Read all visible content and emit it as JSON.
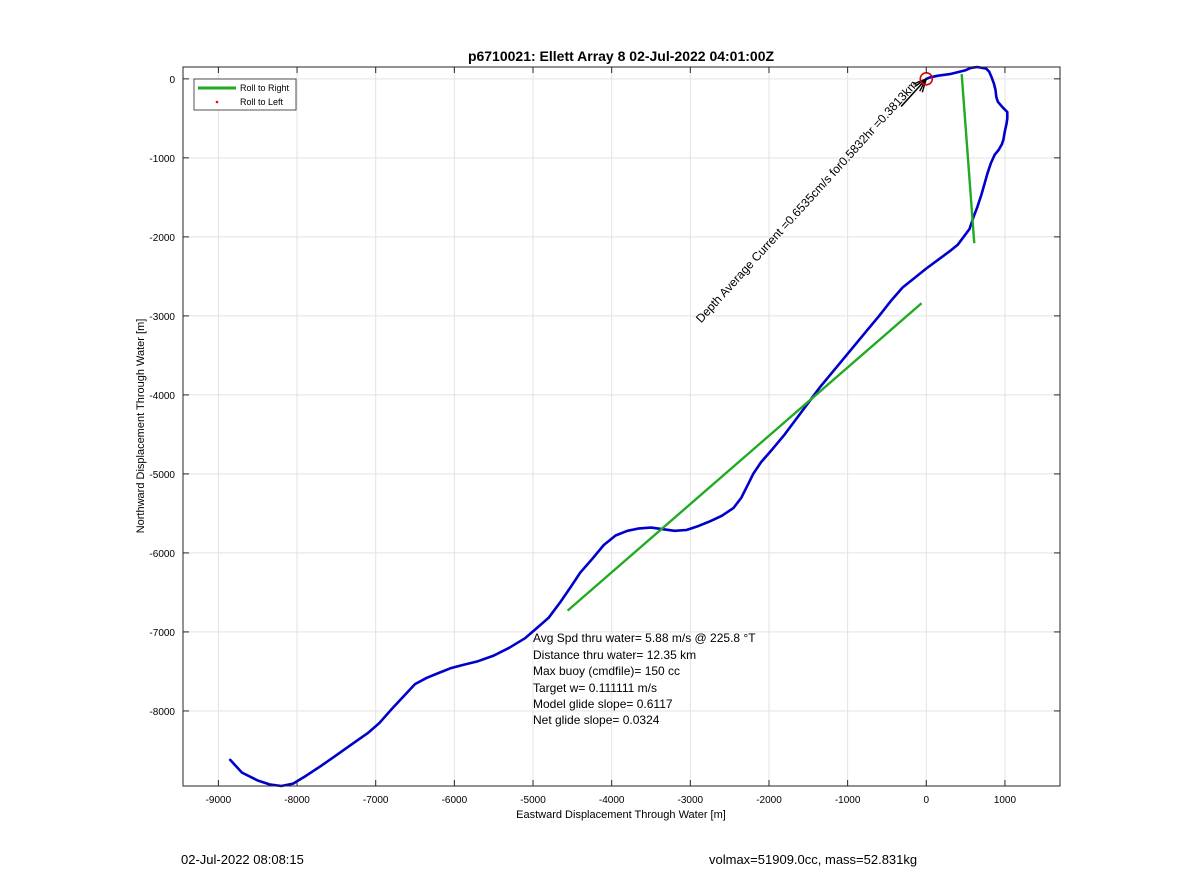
{
  "chart_data": {
    "type": "line",
    "title": "p6710021: Ellett Array 8 02-Jul-2022 04:01:00Z",
    "xlabel": "Eastward Displacement Through Water [m]",
    "ylabel": "Northward Displacement Through Water [m]",
    "xlim": [
      -9450,
      1700
    ],
    "ylim": [
      -8950,
      150
    ],
    "xticks": [
      -9000,
      -8000,
      -7000,
      -6000,
      -5000,
      -4000,
      -3000,
      -2000,
      -1000,
      0,
      1000
    ],
    "yticks": [
      -8000,
      -7000,
      -6000,
      -5000,
      -4000,
      -3000,
      -2000,
      -1000,
      0
    ],
    "grid": true,
    "legend": {
      "position": "top-left",
      "entries": [
        "Roll to Right",
        "Roll to Left"
      ]
    },
    "colors": {
      "track": "#0000cc",
      "roll_right": "#22aa22",
      "roll_left": "#ff0000",
      "marker": "#dd0000",
      "current": "#000000"
    },
    "series": [
      {
        "name": "",
        "x": [
          -8850,
          -8700,
          -8500,
          -8350,
          -8200,
          -8050,
          -7900,
          -7700,
          -7500,
          -7300,
          -7100,
          -6950,
          -6800,
          -6650,
          -6500,
          -6350,
          -6200,
          -6050,
          -5900,
          -5700,
          -5500,
          -5300,
          -5100,
          -4950,
          -4800,
          -4650,
          -4520,
          -4400,
          -4250,
          -4100,
          -3950,
          -3800,
          -3650,
          -3500,
          -3350,
          -3200,
          -3050,
          -2900,
          -2750,
          -2600,
          -2450,
          -2350,
          -2250,
          -2200,
          -2100,
          -1950,
          -1800,
          -1650,
          -1500,
          -1350,
          -1200,
          -1050,
          -900,
          -750,
          -600,
          -450,
          -300,
          -150,
          0,
          150,
          300,
          400,
          550,
          600,
          650,
          700,
          740,
          780,
          820,
          870,
          920,
          960,
          980,
          1000,
          1020,
          1030,
          1030,
          970,
          910,
          890,
          880,
          860,
          830,
          800,
          760,
          650,
          570,
          500,
          300,
          150,
          50,
          0
        ],
        "y": [
          -8620,
          -8780,
          -8880,
          -8930,
          -8950,
          -8920,
          -8830,
          -8700,
          -8560,
          -8420,
          -8280,
          -8150,
          -7980,
          -7820,
          -7660,
          -7580,
          -7520,
          -7460,
          -7420,
          -7370,
          -7300,
          -7200,
          -7080,
          -6950,
          -6820,
          -6620,
          -6430,
          -6250,
          -6080,
          -5900,
          -5780,
          -5720,
          -5690,
          -5680,
          -5700,
          -5720,
          -5710,
          -5660,
          -5600,
          -5530,
          -5430,
          -5300,
          -5100,
          -5000,
          -4850,
          -4680,
          -4500,
          -4300,
          -4100,
          -3900,
          -3720,
          -3540,
          -3360,
          -3180,
          -3000,
          -2810,
          -2640,
          -2520,
          -2400,
          -2290,
          -2180,
          -2100,
          -1900,
          -1750,
          -1620,
          -1470,
          -1330,
          -1190,
          -1070,
          -960,
          -900,
          -830,
          -770,
          -660,
          -570,
          -500,
          -420,
          -360,
          -290,
          -230,
          -140,
          -60,
          20,
          90,
          130,
          150,
          140,
          110,
          60,
          40,
          20,
          0
        ]
      }
    ],
    "roll_segments": [
      {
        "x": [
          -4560,
          -60
        ],
        "y": [
          -6730,
          -2840
        ]
      },
      {
        "x": [
          450,
          610
        ],
        "y": [
          60,
          -2080
        ]
      }
    ],
    "current": {
      "from": [
        0,
        0
      ],
      "to": [
        -320,
        -350
      ]
    },
    "start_marker": [
      0,
      0
    ],
    "current_label": "Depth Average Current =0.6535cm/s for0.5832hr =0.3813km",
    "annotation": [
      "Avg Spd thru water=  5.88 m/s @ 225.8 °T",
      "Distance thru water= 12.35 km",
      "Max buoy (cmdfile)= 150 cc",
      "Target w= 0.111111 m/s",
      "Model glide slope= 0.6117",
      "Net glide slope= 0.0324"
    ]
  },
  "footer": {
    "left": "02-Jul-2022 08:08:15",
    "right": "volmax=51909.0cc, mass=52.831kg"
  }
}
